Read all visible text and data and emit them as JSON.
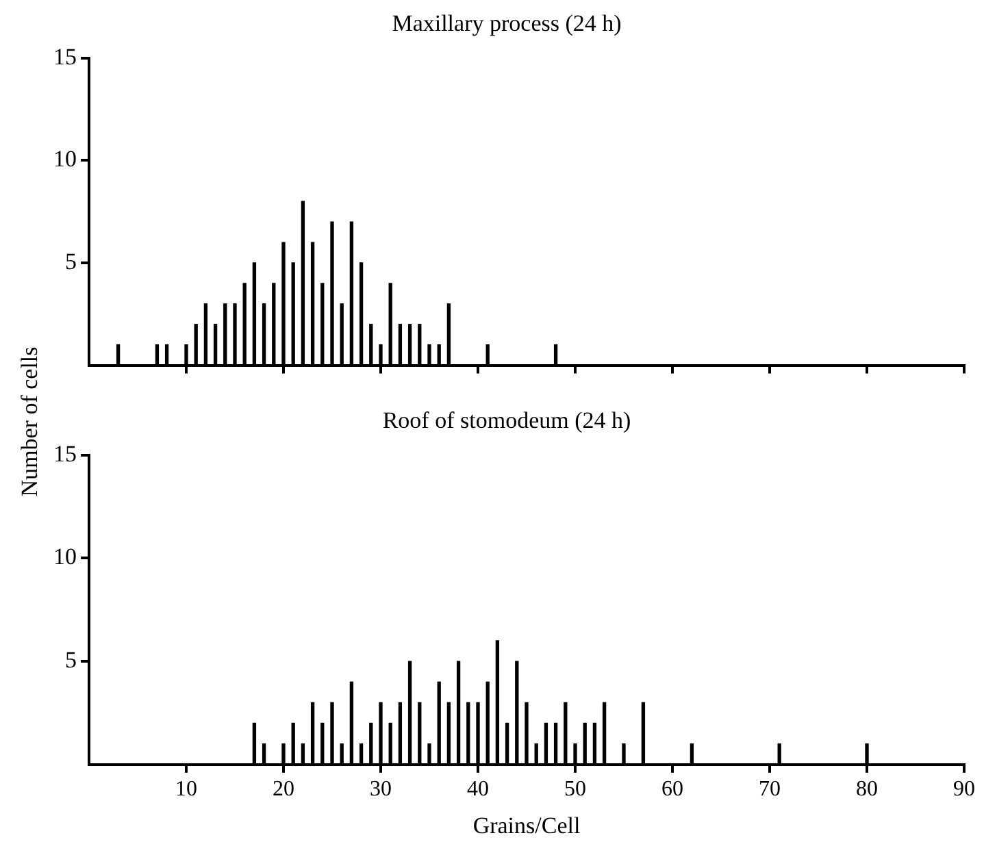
{
  "chart_data": [
    {
      "type": "bar",
      "title": "Maxillary process (24 h)",
      "ylabel": "Number of cells",
      "color": "#000000",
      "x": [
        3,
        7,
        8,
        10,
        11,
        12,
        13,
        14,
        15,
        16,
        17,
        18,
        19,
        20,
        21,
        22,
        23,
        24,
        25,
        26,
        27,
        28,
        29,
        30,
        31,
        32,
        33,
        34,
        35,
        36,
        37,
        41,
        48
      ],
      "values": [
        1,
        1,
        1,
        1,
        2,
        3,
        2,
        3,
        3,
        4,
        5,
        3,
        4,
        6,
        5,
        8,
        6,
        4,
        7,
        3,
        7,
        5,
        2,
        1,
        4,
        2,
        2,
        2,
        1,
        1,
        3,
        1,
        1
      ],
      "xlim": [
        0,
        90
      ],
      "xticks": [
        10,
        20,
        30,
        40,
        50,
        60,
        70,
        80,
        90
      ],
      "tick_labels": "y",
      "ylim": [
        0,
        15
      ],
      "yticks": [
        5,
        10,
        15
      ],
      "grid": false,
      "legend": false
    },
    {
      "type": "bar",
      "title": "Roof of stomodeum (24 h)",
      "xlabel": "Grains/Cell",
      "color": "#000000",
      "x": [
        17,
        18,
        20,
        21,
        22,
        23,
        24,
        25,
        26,
        27,
        28,
        29,
        30,
        31,
        32,
        33,
        34,
        35,
        36,
        37,
        38,
        39,
        40,
        41,
        42,
        43,
        44,
        45,
        46,
        47,
        48,
        49,
        50,
        51,
        52,
        53,
        55,
        57,
        62,
        71,
        80
      ],
      "values": [
        2,
        1,
        1,
        2,
        1,
        3,
        2,
        3,
        1,
        4,
        1,
        2,
        3,
        2,
        3,
        5,
        3,
        1,
        4,
        3,
        5,
        3,
        3,
        4,
        6,
        2,
        5,
        3,
        1,
        2,
        2,
        3,
        1,
        2,
        2,
        3,
        1,
        3,
        1,
        1,
        1
      ],
      "xlim": [
        0,
        90
      ],
      "xticks": [
        10,
        20,
        30,
        40,
        50,
        60,
        70,
        80,
        90
      ],
      "ylim": [
        0,
        15
      ],
      "yticks": [
        5,
        10,
        15
      ],
      "grid": false,
      "legend": false
    }
  ]
}
